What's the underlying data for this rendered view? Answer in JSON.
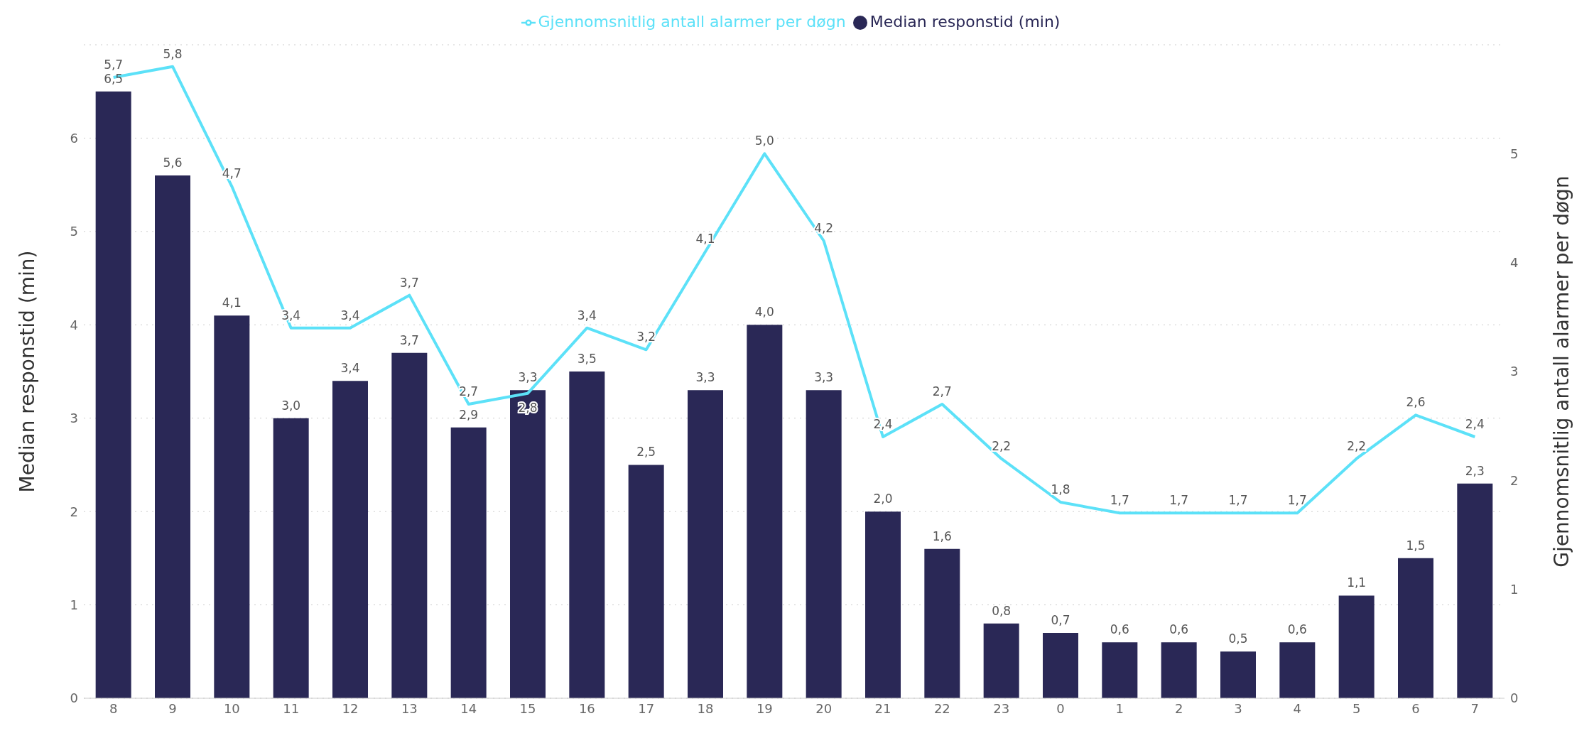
{
  "chart_data": {
    "type": "bar",
    "categories": [
      "8",
      "9",
      "10",
      "11",
      "12",
      "13",
      "14",
      "15",
      "16",
      "17",
      "18",
      "19",
      "20",
      "21",
      "22",
      "23",
      "0",
      "1",
      "2",
      "3",
      "4",
      "5",
      "6",
      "7"
    ],
    "series": [
      {
        "name": "Median responstid (min)",
        "color": "#2a2856",
        "values": [
          6.5,
          5.6,
          4.1,
          3.0,
          3.4,
          3.7,
          2.9,
          3.3,
          3.5,
          2.5,
          3.3,
          4.0,
          3.3,
          2.0,
          1.6,
          0.8,
          0.7,
          0.6,
          0.6,
          0.5,
          0.6,
          1.1,
          1.5,
          2.3
        ],
        "value_labels": [
          "6,5",
          "5,6",
          "4,1",
          "3,0",
          "3,4",
          "3,7",
          "2,9",
          "3,3",
          "3,5",
          "2,5",
          "3,3",
          "4,0",
          "3,3",
          "2,0",
          "1,6",
          "0,8",
          "0,7",
          "0,6",
          "0,6",
          "0,5",
          "0,6",
          "1,1",
          "1,5",
          "2,3"
        ]
      },
      {
        "name": "Gjennomsnitlig antall alarmer per døgn",
        "type": "line",
        "axis": "y2",
        "color": "#5ce1f8",
        "values": [
          5.7,
          5.8,
          4.7,
          3.4,
          3.4,
          3.7,
          2.7,
          2.8,
          3.4,
          3.2,
          4.1,
          5.0,
          4.2,
          2.4,
          2.7,
          2.2,
          1.8,
          1.7,
          1.7,
          1.7,
          1.7,
          2.2,
          2.6,
          2.4
        ],
        "value_labels": [
          "5,7",
          "5,8",
          "4,7",
          "3,4",
          "3,4",
          "3,7",
          "2,7",
          "2,8",
          "3,4",
          "3,2",
          "4,1",
          "5,0",
          "4,2",
          "2,4",
          "2,7",
          "2,2",
          "1,8",
          "1,7",
          "1,7",
          "1,7",
          "1,7",
          "2,2",
          "2,6",
          "2,4"
        ]
      }
    ],
    "ylabel": "Median responstid (min)",
    "y2label": "Gjennomsnitlig antall alarmer per døgn",
    "ylim": [
      0,
      7
    ],
    "yticks": [
      0,
      1,
      2,
      3,
      4,
      5,
      6
    ],
    "y2lim": [
      0,
      6
    ],
    "y2ticks": [
      0,
      1,
      2,
      3,
      4,
      5
    ],
    "grid": "y",
    "legend": "top"
  }
}
